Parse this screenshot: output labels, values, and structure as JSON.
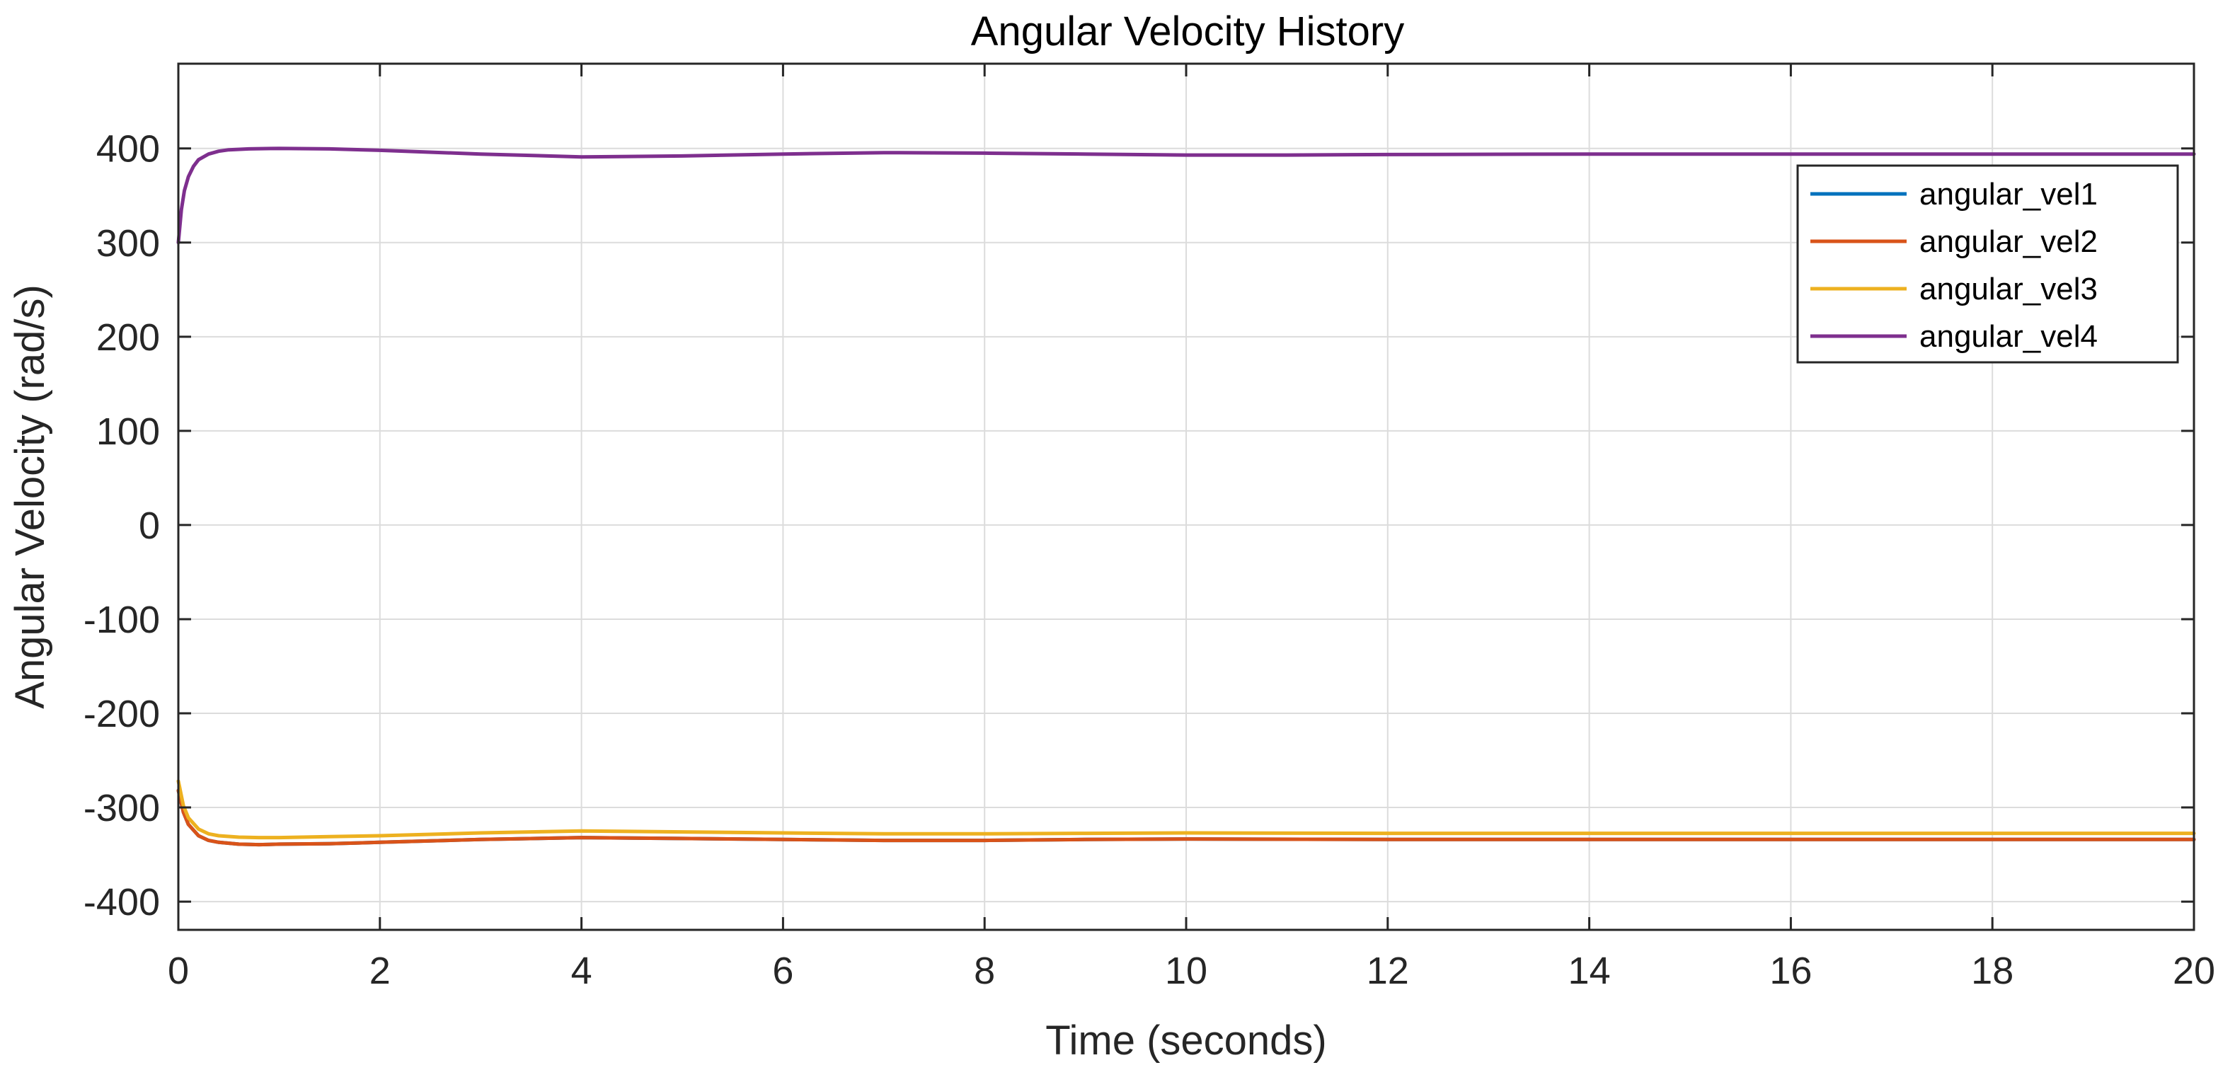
{
  "chart_data": {
    "type": "line",
    "title": "Angular Velocity History",
    "xlabel": "Time (seconds)",
    "ylabel": "Angular Velocity (rad/s)",
    "xlim": [
      0,
      20
    ],
    "ylim": [
      -430,
      490
    ],
    "xticks": [
      0,
      2,
      4,
      6,
      8,
      10,
      12,
      14,
      16,
      18,
      20
    ],
    "yticks": [
      -400,
      -300,
      -200,
      -100,
      0,
      100,
      200,
      300,
      400
    ],
    "grid": true,
    "legend_position": "top-right",
    "series": [
      {
        "name": "angular_vel1",
        "color": "#0072BD",
        "x": [
          0,
          0.05,
          0.1,
          0.2,
          0.3,
          0.4,
          0.6,
          0.8,
          1,
          1.5,
          2,
          3,
          4,
          5,
          6,
          7,
          8,
          9,
          10,
          12,
          14,
          16,
          18,
          20
        ],
        "y": [
          -282,
          -305,
          -318,
          -330,
          -335,
          -337,
          -339,
          -339.5,
          -339,
          -338.5,
          -337,
          -334,
          -332,
          -333,
          -334,
          -335,
          -335,
          -334,
          -333.5,
          -334,
          -334,
          -334,
          -334,
          -334
        ]
      },
      {
        "name": "angular_vel2",
        "color": "#D95319",
        "x": [
          0,
          0.05,
          0.1,
          0.2,
          0.3,
          0.4,
          0.6,
          0.8,
          1,
          1.5,
          2,
          3,
          4,
          5,
          6,
          7,
          8,
          9,
          10,
          12,
          14,
          16,
          18,
          20
        ],
        "y": [
          -282,
          -305,
          -318,
          -330,
          -335,
          -337,
          -339,
          -339.5,
          -339,
          -338.5,
          -337,
          -334,
          -332,
          -333,
          -334,
          -335,
          -335,
          -334,
          -333.5,
          -334,
          -334,
          -334,
          -334,
          -334
        ]
      },
      {
        "name": "angular_vel3",
        "color": "#EDB120",
        "x": [
          0,
          0.05,
          0.1,
          0.2,
          0.3,
          0.4,
          0.6,
          0.8,
          1,
          1.5,
          2,
          3,
          4,
          5,
          6,
          7,
          8,
          9,
          10,
          12,
          14,
          16,
          18,
          20
        ],
        "y": [
          -272,
          -298,
          -311,
          -323,
          -328,
          -330,
          -331.5,
          -332,
          -332,
          -331,
          -330,
          -327,
          -325,
          -326,
          -327,
          -328,
          -328,
          -327.5,
          -327,
          -327.5,
          -327.5,
          -327.5,
          -327.5,
          -327.5
        ]
      },
      {
        "name": "angular_vel4",
        "color": "#7E2F8E",
        "x": [
          0,
          0.03,
          0.06,
          0.1,
          0.15,
          0.2,
          0.3,
          0.4,
          0.5,
          0.7,
          1,
          1.5,
          2,
          3,
          4,
          5,
          6,
          7,
          8,
          9,
          10,
          11,
          12,
          14,
          16,
          18,
          20
        ],
        "y": [
          300,
          335,
          355,
          370,
          381,
          388,
          394,
          397,
          398.5,
          399.5,
          400,
          399.5,
          398,
          394,
          391,
          392,
          394,
          395.5,
          395,
          394,
          393,
          393,
          393.5,
          394,
          394,
          394,
          394
        ]
      }
    ]
  }
}
